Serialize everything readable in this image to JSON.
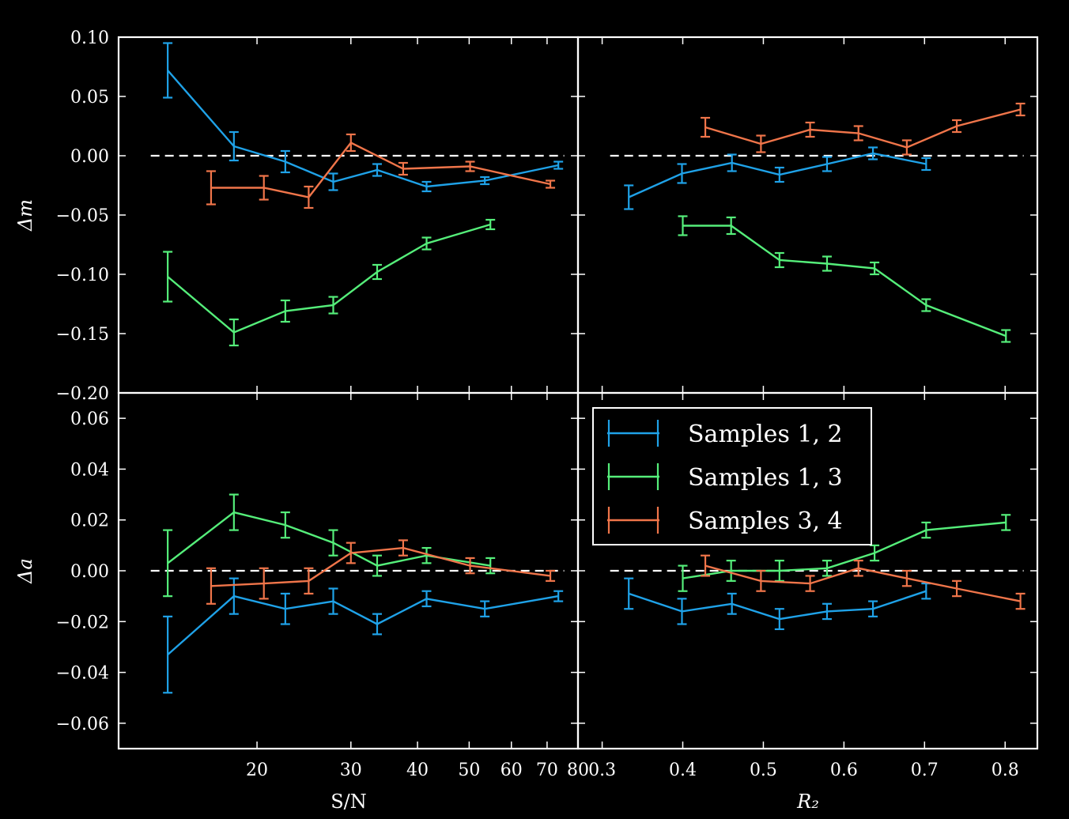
{
  "chart_data": {
    "type": "line",
    "colors": {
      "background": "#000000",
      "axes": "#ffffff",
      "s12": "#1fa2e8",
      "s13": "#55ee7a",
      "s34": "#f0754a"
    },
    "legend": {
      "placement": "inside lower-right panel, top",
      "entries": [
        {
          "key": "s12",
          "label": "Samples 1, 2"
        },
        {
          "key": "s13",
          "label": "Samples 1, 3"
        },
        {
          "key": "s34",
          "label": "Samples 3, 4"
        }
      ]
    },
    "x_axes": {
      "sn": {
        "label": "S/N",
        "scale": "log",
        "range": [
          11,
          80
        ],
        "ticks": [
          20,
          30,
          40,
          50,
          60,
          70,
          80
        ],
        "tick_labels": [
          "20",
          "30",
          "40",
          "50",
          "60",
          "70",
          "80"
        ]
      },
      "r2": {
        "label": "R₂",
        "scale": "linear",
        "range": [
          0.27,
          0.84
        ],
        "ticks": [
          0.3,
          0.4,
          0.5,
          0.6,
          0.7,
          0.8
        ],
        "tick_labels": [
          "0.3",
          "0.4",
          "0.5",
          "0.6",
          "0.7",
          "0.8"
        ]
      }
    },
    "y_axes": {
      "m": {
        "label": "Δm",
        "range": [
          -0.2,
          0.1
        ],
        "ticks": [
          0.1,
          0.05,
          0.0,
          -0.05,
          -0.1,
          -0.15,
          -0.2
        ],
        "tick_labels": [
          "0.10",
          "0.05",
          "0.00",
          "−0.05",
          "−0.10",
          "−0.15",
          "−0.20"
        ]
      },
      "a": {
        "label": "Δa",
        "range": [
          -0.07,
          0.07
        ],
        "ticks": [
          0.06,
          0.04,
          0.02,
          0.0,
          -0.02,
          -0.04,
          -0.06
        ],
        "tick_labels": [
          "0.06",
          "0.04",
          "0.02",
          "0.00",
          "−0.02",
          "−0.04",
          "−0.06"
        ]
      }
    },
    "panels": [
      {
        "x_axis": "sn",
        "y_axis": "m",
        "series": [
          {
            "key": "s12",
            "x": [
              13.6,
              18.1,
              22.6,
              27.8,
              33.6,
              41.6,
              53.5,
              73.5
            ],
            "y": [
              0.072,
              0.008,
              -0.005,
              -0.022,
              -0.012,
              -0.026,
              -0.021,
              -0.008
            ],
            "err": [
              0.023,
              0.012,
              0.009,
              0.007,
              0.005,
              0.004,
              0.003,
              0.003
            ]
          },
          {
            "key": "s13",
            "x": [
              13.6,
              18.1,
              22.6,
              27.8,
              33.6,
              41.6,
              54.8
            ],
            "y": [
              -0.102,
              -0.149,
              -0.131,
              -0.126,
              -0.098,
              -0.074,
              -0.058
            ],
            "err": [
              0.021,
              0.011,
              0.009,
              0.007,
              0.006,
              0.005,
              0.004
            ]
          },
          {
            "key": "s34",
            "x": [
              16.4,
              20.6,
              25.0,
              30.0,
              37.6,
              50.2,
              71.0
            ],
            "y": [
              -0.027,
              -0.027,
              -0.035,
              0.011,
              -0.011,
              -0.009,
              -0.024
            ],
            "err": [
              0.014,
              0.01,
              0.009,
              0.007,
              0.005,
              0.004,
              0.003
            ]
          }
        ]
      },
      {
        "x_axis": "r2",
        "y_axis": "m",
        "series": [
          {
            "key": "s12",
            "x": [
              0.333,
              0.399,
              0.461,
              0.52,
              0.579,
              0.636,
              0.702
            ],
            "y": [
              -0.035,
              -0.015,
              -0.006,
              -0.016,
              -0.007,
              0.002,
              -0.007
            ],
            "err": [
              0.01,
              0.008,
              0.007,
              0.006,
              0.006,
              0.005,
              0.005
            ]
          },
          {
            "key": "s13",
            "x": [
              0.4,
              0.46,
              0.52,
              0.579,
              0.638,
              0.702,
              0.801
            ],
            "y": [
              -0.059,
              -0.059,
              -0.088,
              -0.091,
              -0.095,
              -0.126,
              -0.152
            ],
            "err": [
              0.008,
              0.007,
              0.006,
              0.006,
              0.005,
              0.005,
              0.005
            ]
          },
          {
            "key": "s34",
            "x": [
              0.428,
              0.497,
              0.558,
              0.618,
              0.678,
              0.74,
              0.819
            ],
            "y": [
              0.024,
              0.01,
              0.022,
              0.019,
              0.007,
              0.025,
              0.039
            ],
            "err": [
              0.008,
              0.007,
              0.006,
              0.006,
              0.006,
              0.005,
              0.005
            ]
          }
        ]
      },
      {
        "x_axis": "sn",
        "y_axis": "a",
        "series": [
          {
            "key": "s12",
            "x": [
              13.6,
              18.1,
              22.6,
              27.8,
              33.6,
              41.6,
              53.5,
              73.5
            ],
            "y": [
              -0.033,
              -0.01,
              -0.015,
              -0.012,
              -0.021,
              -0.011,
              -0.015,
              -0.01
            ],
            "err": [
              0.015,
              0.007,
              0.006,
              0.005,
              0.004,
              0.003,
              0.003,
              0.002
            ]
          },
          {
            "key": "s13",
            "x": [
              13.6,
              18.1,
              22.6,
              27.8,
              33.6,
              41.6,
              54.8
            ],
            "y": [
              0.003,
              0.023,
              0.018,
              0.011,
              0.002,
              0.006,
              0.002
            ],
            "err": [
              0.013,
              0.007,
              0.005,
              0.005,
              0.004,
              0.003,
              0.003
            ]
          },
          {
            "key": "s34",
            "x": [
              16.4,
              20.6,
              25.0,
              30.0,
              37.6,
              50.2,
              71.0
            ],
            "y": [
              -0.006,
              -0.005,
              -0.004,
              0.007,
              0.009,
              0.002,
              -0.002
            ],
            "err": [
              0.007,
              0.006,
              0.005,
              0.004,
              0.003,
              0.003,
              0.002
            ]
          }
        ]
      },
      {
        "x_axis": "r2",
        "y_axis": "a",
        "series": [
          {
            "key": "s12",
            "x": [
              0.333,
              0.399,
              0.461,
              0.52,
              0.579,
              0.636,
              0.702
            ],
            "y": [
              -0.009,
              -0.016,
              -0.013,
              -0.019,
              -0.016,
              -0.015,
              -0.008
            ],
            "err": [
              0.006,
              0.005,
              0.004,
              0.004,
              0.003,
              0.003,
              0.003
            ]
          },
          {
            "key": "s13",
            "x": [
              0.4,
              0.46,
              0.52,
              0.579,
              0.638,
              0.702,
              0.801
            ],
            "y": [
              -0.003,
              0.0,
              0.0,
              0.001,
              0.007,
              0.016,
              0.019
            ],
            "err": [
              0.005,
              0.004,
              0.004,
              0.003,
              0.003,
              0.003,
              0.003
            ]
          },
          {
            "key": "s34",
            "x": [
              0.428,
              0.497,
              0.558,
              0.618,
              0.678,
              0.74,
              0.819
            ],
            "y": [
              0.002,
              -0.004,
              -0.005,
              0.001,
              -0.003,
              -0.007,
              -0.012
            ],
            "err": [
              0.004,
              0.004,
              0.003,
              0.003,
              0.003,
              0.003,
              0.003
            ]
          }
        ]
      }
    ]
  }
}
